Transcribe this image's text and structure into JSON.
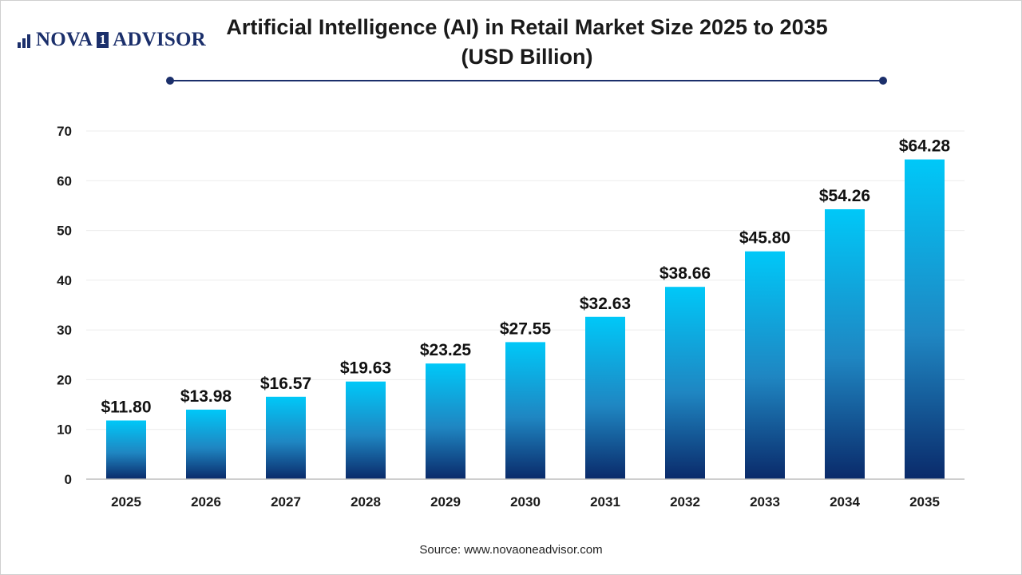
{
  "logo": {
    "text_left": "NOVA",
    "text_mid": "1",
    "text_right": "ADVISOR"
  },
  "title_line1": "Artificial Intelligence (AI) in Retail Market Size 2025 to 2035",
  "title_line2": "(USD Billion)",
  "source": "Source: www.novaoneadvisor.com",
  "colors": {
    "bar_top": "#00c8f8",
    "bar_bottom": "#0a2a6a",
    "brand": "#1b2f6b"
  },
  "chart_data": {
    "type": "bar",
    "categories": [
      "2025",
      "2026",
      "2027",
      "2028",
      "2029",
      "2030",
      "2031",
      "2032",
      "2033",
      "2034",
      "2035"
    ],
    "values": [
      11.8,
      13.98,
      16.57,
      19.63,
      23.25,
      27.55,
      32.63,
      38.66,
      45.8,
      54.26,
      64.28
    ],
    "value_labels": [
      "$11.80",
      "$13.98",
      "$16.57",
      "$19.63",
      "$23.25",
      "$27.55",
      "$32.63",
      "$38.66",
      "$45.80",
      "$54.26",
      "$64.28"
    ],
    "yticks": [
      0,
      10,
      20,
      30,
      40,
      50,
      60,
      70
    ],
    "ylim": [
      0,
      70
    ],
    "grid": true,
    "legend": "none"
  }
}
